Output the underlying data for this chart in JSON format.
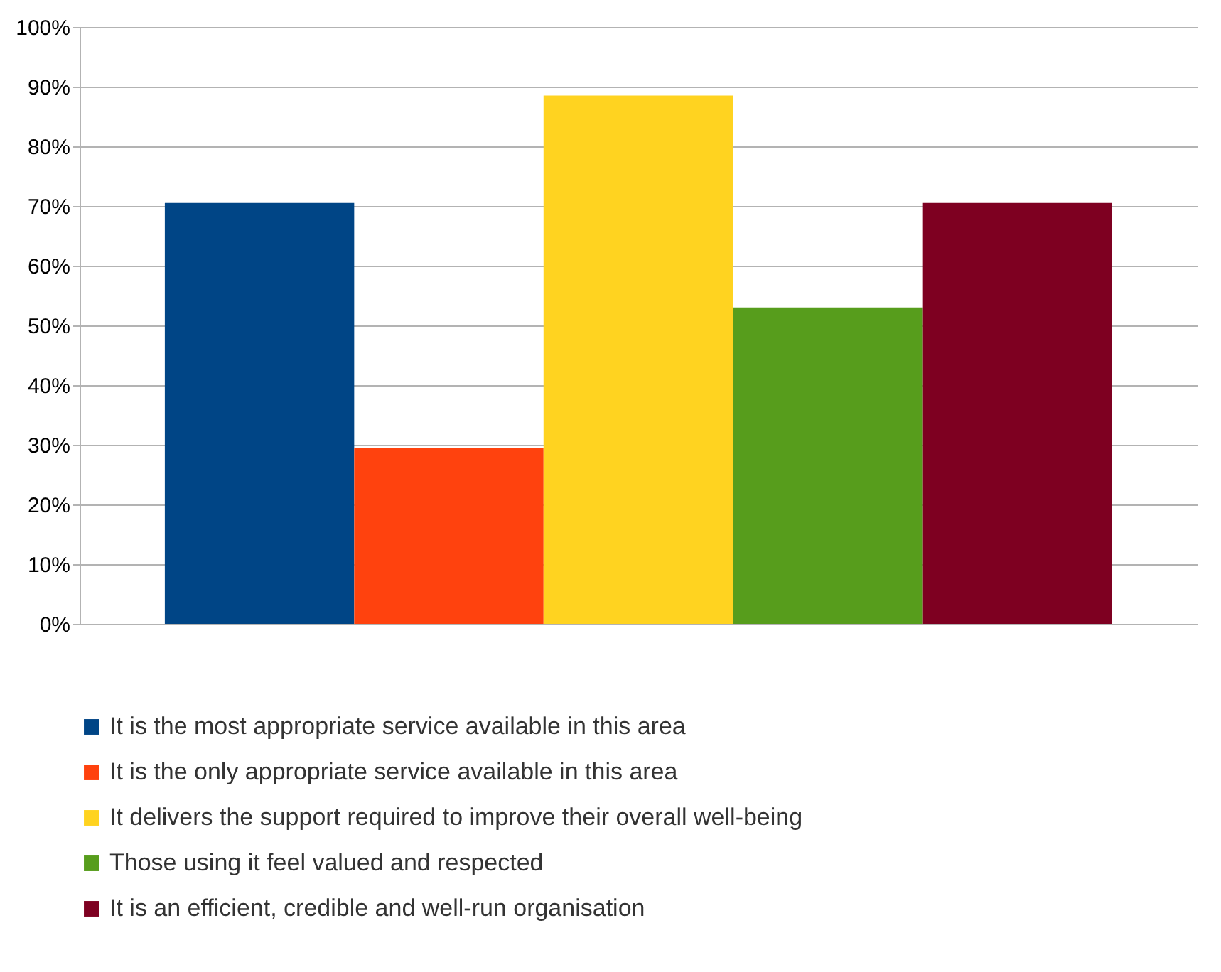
{
  "chart_data": {
    "type": "bar",
    "categories": [
      null
    ],
    "series": [
      {
        "name": "It is the most appropriate service available in this area",
        "color": "#004586",
        "values": [
          70.5
        ]
      },
      {
        "name": "It is the only appropriate service available in this area",
        "color": "#ff420e",
        "values": [
          29.5
        ]
      },
      {
        "name": "It delivers the support required to improve their overall well-being",
        "color": "#ffd320",
        "values": [
          88.5
        ]
      },
      {
        "name": "Those using it feel valued and respected",
        "color": "#579d1c",
        "values": [
          53
        ]
      },
      {
        "name": "It is an efficient, credible and well-run organisation",
        "color": "#7e0021",
        "values": [
          70.5
        ]
      }
    ],
    "ylim": [
      0,
      100
    ],
    "yticks": [
      {
        "value": 0,
        "label": "0%"
      },
      {
        "value": 10,
        "label": "10%"
      },
      {
        "value": 20,
        "label": "20%"
      },
      {
        "value": 30,
        "label": "30%"
      },
      {
        "value": 40,
        "label": "40%"
      },
      {
        "value": 50,
        "label": "50%"
      },
      {
        "value": 60,
        "label": "60%"
      },
      {
        "value": 70,
        "label": "70%"
      },
      {
        "value": 80,
        "label": "80%"
      },
      {
        "value": 90,
        "label": "90%"
      },
      {
        "value": 100,
        "label": "100%"
      }
    ],
    "grid": "y",
    "legend": "bottom"
  }
}
